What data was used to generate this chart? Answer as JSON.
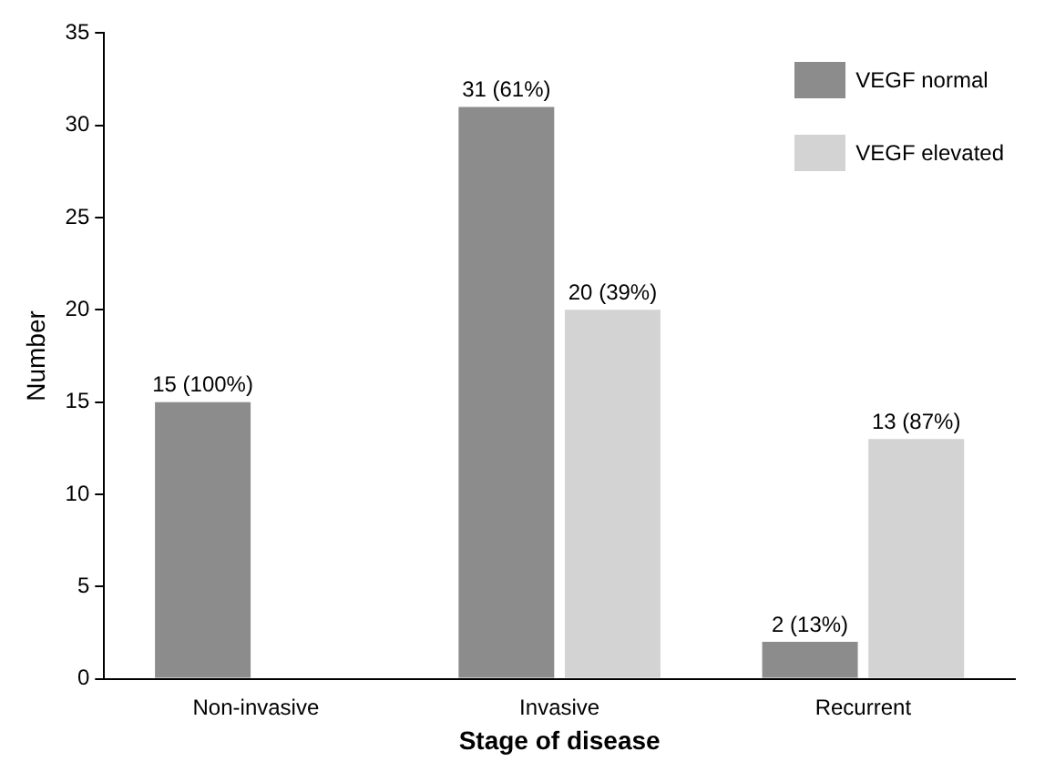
{
  "chart_data": {
    "type": "bar",
    "xlabel": "Stage of disease",
    "ylabel": "Number",
    "categories": [
      "Non-invasive",
      "Invasive",
      "Recurrent"
    ],
    "series": [
      {
        "name": "VEGF normal",
        "color": "#8c8c8c",
        "values": [
          15,
          31,
          2
        ],
        "value_labels": [
          "15 (100%)",
          "31 (61%)",
          "2 (13%)"
        ]
      },
      {
        "name": "VEGF elevated",
        "color": "#d3d3d3",
        "values": [
          0,
          20,
          13
        ],
        "value_labels": [
          null,
          "20 (39%)",
          "13 (87%)"
        ]
      }
    ],
    "ylim": [
      0,
      35
    ],
    "yticks": [
      0,
      5,
      10,
      15,
      20,
      25,
      30,
      35
    ],
    "grid": false,
    "legend": "top right"
  }
}
